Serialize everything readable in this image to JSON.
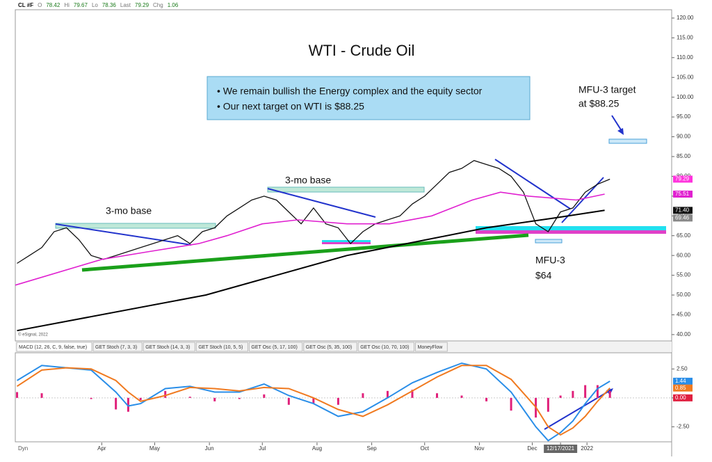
{
  "header": {
    "items": [
      "CL #F",
      "O",
      "78.42",
      "Hi",
      "79.67",
      "Lo",
      "78.36",
      "Last",
      "79.29",
      "Chg",
      "1.06"
    ]
  },
  "tabs": [
    "MACD (12, 26, C, 9, false, true)",
    "GET Stoch (7, 3, 3)",
    "GET Stoch (14, 3, 3)",
    "GET Stoch (10, 5, 5)",
    "GET Osc (5, 17, 100)",
    "GET Osc (5, 35, 100)",
    "GET Osc (10, 70, 100)",
    "MoneyFlow"
  ],
  "axis_corner": "Dyn",
  "copyright": "© eSignal, 2022",
  "chart_data": [
    {
      "type": "line",
      "title": "WTI - Crude Oil",
      "notes": [
        "• We remain bullish the Energy complex and the equity sector",
        "• Our next target on WTI is $88.25"
      ],
      "annotations": [
        "3-mo base",
        "3-mo base",
        "MFU-3 target",
        "at $88.25",
        "MFU-3",
        "$64"
      ],
      "xlim": [
        -18,
        354
      ],
      "xticks": [
        {
          "value": 31,
          "label": "Apr"
        },
        {
          "value": 61,
          "label": "May"
        },
        {
          "value": 92,
          "label": "Jun"
        },
        {
          "value": 122,
          "label": "Jul"
        },
        {
          "value": 153,
          "label": "Aug"
        },
        {
          "value": 184,
          "label": "Sep"
        },
        {
          "value": 214,
          "label": "Oct"
        },
        {
          "value": 245,
          "label": "Nov"
        },
        {
          "value": 275,
          "label": "Dec"
        },
        {
          "value": 291,
          "label": "12/17/2021"
        },
        {
          "value": 306,
          "label": "2022"
        }
      ],
      "ylim": [
        38.4,
        122.1
      ],
      "yticks": [
        {
          "value": 40,
          "label": "40.00"
        },
        {
          "value": 45,
          "label": "45.00"
        },
        {
          "value": 50,
          "label": "50.00"
        },
        {
          "value": 55,
          "label": "55.00"
        },
        {
          "value": 60,
          "label": "60.00"
        },
        {
          "value": 65,
          "label": "65.00"
        },
        {
          "value": 70,
          "label": "70.00"
        },
        {
          "value": 75,
          "label": "75.00"
        },
        {
          "value": 80,
          "label": "80.00"
        },
        {
          "value": 85,
          "label": "85.00"
        },
        {
          "value": 90,
          "label": "90.00"
        },
        {
          "value": 95,
          "label": "95.00"
        },
        {
          "value": 100,
          "label": "100.00"
        },
        {
          "value": 105,
          "label": "105.00"
        },
        {
          "value": 110,
          "label": "110.00"
        },
        {
          "value": 115,
          "label": "115.00"
        },
        {
          "value": 120,
          "label": "120.00"
        }
      ],
      "series": [
        {
          "color": "#111111",
          "width": 1.3,
          "x": [
            -17,
            -10,
            -3,
            4,
            11,
            18,
            25,
            32,
            39,
            46,
            53,
            60,
            67,
            74,
            81,
            88,
            95,
            102,
            109,
            116,
            123,
            130,
            137,
            144,
            151,
            158,
            165,
            172,
            179,
            186,
            193,
            200,
            207,
            214,
            221,
            228,
            235,
            242,
            249,
            256,
            263,
            270,
            277,
            284,
            291,
            298,
            305,
            312,
            319
          ],
          "values": [
            58,
            60,
            62,
            66,
            67,
            64,
            60,
            59,
            60,
            61,
            62,
            63,
            64,
            65,
            63,
            66,
            67,
            70,
            72,
            74,
            75,
            74,
            71,
            68,
            72,
            68,
            67,
            63,
            66,
            68,
            69,
            70,
            73,
            75,
            78,
            81,
            82,
            84,
            83,
            82,
            80,
            76,
            68,
            66,
            71,
            72,
            76,
            78,
            79.29
          ]
        },
        {
          "color": "#e020d0",
          "width": 1.6,
          "x": [
            -18,
            31,
            58,
            86,
            102,
            122,
            142,
            170,
            194,
            218,
            241,
            257,
            273,
            300,
            316
          ],
          "values": [
            52.5,
            59,
            61,
            63,
            65,
            68,
            69,
            68,
            68,
            70,
            74,
            76,
            75,
            74,
            75.51
          ]
        },
        {
          "color": "#000000",
          "width": 2,
          "x": [
            -17,
            90,
            170,
            249,
            288,
            316
          ],
          "values": [
            41,
            50,
            60,
            67,
            69.5,
            71.4
          ]
        }
      ],
      "flags": [
        {
          "value": 79.29,
          "label": "79.29",
          "color": "#ff33dd"
        },
        {
          "value": 75.51,
          "label": "75.51",
          "color": "#e020d0"
        },
        {
          "value": 71.4,
          "label": "71.40",
          "color": "#111111"
        },
        {
          "value": 69.46,
          "label": "69.46",
          "color": "#888888"
        }
      ]
    },
    {
      "type": "macd",
      "xlim": [
        -18,
        354
      ],
      "ylim": [
        -3.8,
        3.9
      ],
      "yticks": [
        {
          "value": 2.5,
          "label": "2.50"
        },
        {
          "value": 0,
          "label": "0.00"
        },
        {
          "value": -2.5,
          "label": "-2.50"
        }
      ],
      "x": [
        -17,
        -3,
        11,
        25,
        39,
        46,
        53,
        67,
        81,
        95,
        109,
        123,
        137,
        151,
        165,
        179,
        193,
        207,
        221,
        235,
        249,
        263,
        277,
        284,
        291,
        298,
        305,
        312,
        319
      ],
      "series": [
        {
          "color": "#2a8ee8",
          "values": [
            1.5,
            2.8,
            2.6,
            2.4,
            0.5,
            -0.7,
            -0.5,
            0.8,
            1.0,
            0.5,
            0.5,
            1.2,
            0.2,
            -0.5,
            -1.6,
            -1.2,
            0,
            1.3,
            2.2,
            3.0,
            2.5,
            0.5,
            -2.5,
            -3.7,
            -3.0,
            -2,
            -0.5,
            0.8,
            1.44
          ]
        },
        {
          "color": "#f07a20",
          "values": [
            1.0,
            2.4,
            2.6,
            2.5,
            1.5,
            0.5,
            -0.3,
            0.2,
            0.9,
            0.8,
            0.6,
            0.9,
            0.8,
            0,
            -1.0,
            -1.6,
            -0.6,
            0.6,
            1.8,
            2.8,
            2.8,
            1.6,
            -0.8,
            -2.5,
            -3.2,
            -2.6,
            -1.6,
            -0.3,
            0.85
          ]
        }
      ],
      "histogram": {
        "color": "#e0207a",
        "values": [
          0.5,
          0.4,
          0,
          -0.1,
          -1.0,
          -1.2,
          -0.2,
          0.6,
          0.1,
          -0.3,
          -0.1,
          0.3,
          -0.6,
          -0.5,
          -0.6,
          0.4,
          0.6,
          0.7,
          0.4,
          0.2,
          -0.3,
          -1.1,
          -1.7,
          -1.2,
          0.2,
          0.6,
          1.1,
          1.1,
          0.59
        ]
      },
      "flags": [
        {
          "value": 1.44,
          "label": "1.44",
          "color": "#2a8ee8"
        },
        {
          "value": 0.85,
          "label": "0.85",
          "color": "#f07a20"
        },
        {
          "value": 0,
          "label": "0.00",
          "color": "#e02040"
        }
      ]
    }
  ]
}
